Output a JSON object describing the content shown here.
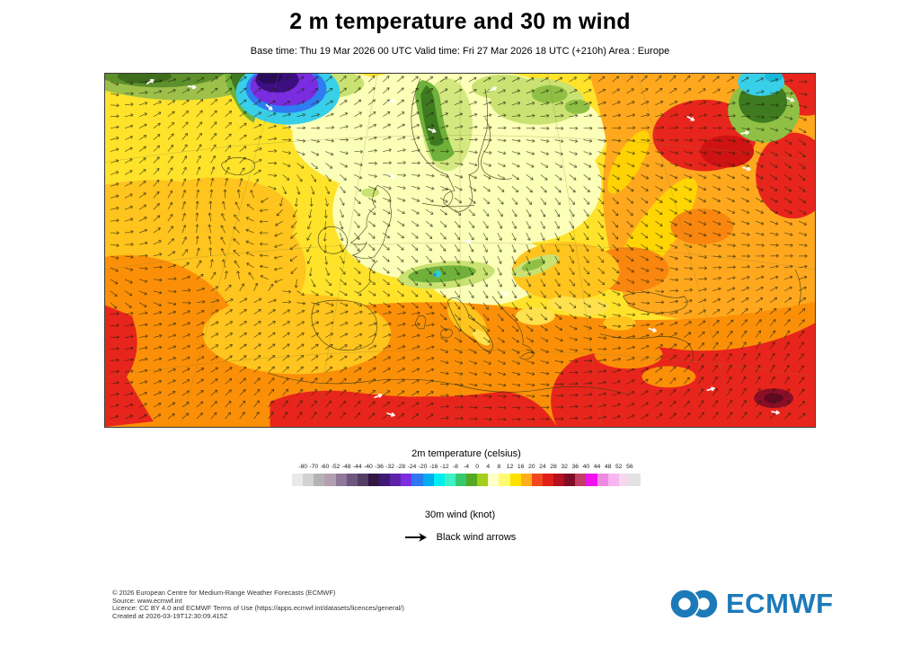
{
  "header": {
    "title": "2 m temperature and 30 m wind",
    "subtitle": "Base time: Thu 19 Mar 2026 00 UTC Valid time: Fri 27 Mar 2026 18 UTC (+210h) Area : Europe"
  },
  "chart_data": {
    "type": "heatmap",
    "title": "2 m temperature and 30 m wind",
    "area": "Europe",
    "base_time": "Thu 19 Mar 2026 00 UTC",
    "valid_time": "Fri 27 Mar 2026 18 UTC (+210h)",
    "temperature_legend": {
      "label": "2m temperature (celsius)",
      "tick_values": [
        -80,
        -70,
        -60,
        -52,
        -48,
        -44,
        -40,
        -36,
        -32,
        -28,
        -24,
        -20,
        -16,
        -12,
        -8,
        -4,
        0,
        4,
        8,
        12,
        16,
        20,
        24,
        28,
        32,
        36,
        40,
        44,
        48,
        52,
        56
      ],
      "segment_colors": [
        "#e9e9e9",
        "#d2d2d2",
        "#b3b3b3",
        "#b2a0b2",
        "#8f7899",
        "#6e5680",
        "#523d63",
        "#321747",
        "#3f1a74",
        "#5d22a8",
        "#7c2fe0",
        "#2e78f0",
        "#00aef0",
        "#00eef0",
        "#3ef2c8",
        "#35ca70",
        "#56a822",
        "#a3cf1c",
        "#ffffc8",
        "#fffb6e",
        "#ffe100",
        "#ffae1a",
        "#f2481f",
        "#df1f18",
        "#b5101c",
        "#7e0c26",
        "#c23d64",
        "#ee12ec",
        "#ef8ae3",
        "#f7b6f0",
        "#f3d8ef",
        "#e3e3e3"
      ]
    },
    "wind_legend": {
      "label": "30m wind (knot)",
      "symbol": "black-arrow",
      "symbol_label": "Black wind arrows",
      "symbol_color": "#000000"
    }
  },
  "footer": {
    "lines": [
      "© 2026 European Centre for Medium-Range Weather Forecasts (ECMWF)",
      "Source: www.ecmwf.int",
      "Licence: CC BY 4.0 and ECMWF Terms of Use (https://apps.ecmwf.int/datasets/licences/general/)",
      "Created at 2026-03-19T12:30:09.415Z"
    ],
    "logo_text": "ECMWF",
    "logo_color": "#1d7ab9"
  }
}
